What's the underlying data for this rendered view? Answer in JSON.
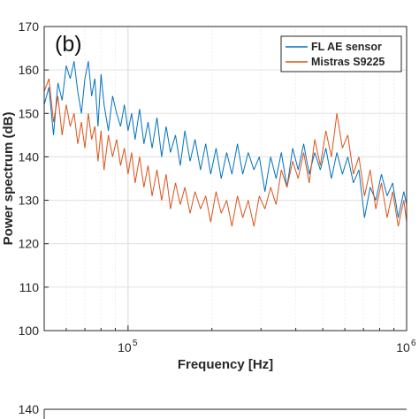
{
  "chart_data": [
    {
      "type": "line",
      "panel_label": "(b)",
      "xlabel": "Frequency [Hz]",
      "ylabel": "Power spectrum (dB)",
      "xscale": "log",
      "xlim": [
        50000,
        1000000
      ],
      "ylim": [
        100,
        170
      ],
      "xticks": [
        {
          "value": 100000,
          "label": "10",
          "exp": "5"
        },
        {
          "value": 1000000,
          "label": "10",
          "exp": "6"
        }
      ],
      "yticks": [
        100,
        110,
        120,
        130,
        140,
        150,
        160,
        170
      ],
      "grid": true,
      "legend_position": "top-right",
      "series": [
        {
          "name": "FL AE sensor",
          "color": "#0072BD",
          "points": [
            [
              50000,
              152
            ],
            [
              52000,
              156
            ],
            [
              54000,
              145
            ],
            [
              56000,
              157
            ],
            [
              58000,
              153
            ],
            [
              60000,
              161
            ],
            [
              62000,
              158
            ],
            [
              64000,
              162
            ],
            [
              66000,
              155
            ],
            [
              68000,
              150
            ],
            [
              70000,
              158
            ],
            [
              72000,
              162
            ],
            [
              74000,
              154
            ],
            [
              76000,
              158
            ],
            [
              78000,
              147
            ],
            [
              80000,
              159
            ],
            [
              82000,
              152
            ],
            [
              85000,
              146
            ],
            [
              88000,
              154
            ],
            [
              91000,
              150
            ],
            [
              94000,
              147
            ],
            [
              97000,
              152
            ],
            [
              100000,
              146
            ],
            [
              103000,
              150
            ],
            [
              106000,
              144
            ],
            [
              110000,
              151
            ],
            [
              114000,
              143
            ],
            [
              118000,
              148
            ],
            [
              122000,
              142
            ],
            [
              127000,
              149
            ],
            [
              132000,
              140
            ],
            [
              137000,
              147
            ],
            [
              142000,
              141
            ],
            [
              148000,
              145
            ],
            [
              154000,
              138
            ],
            [
              160000,
              146
            ],
            [
              167000,
              139
            ],
            [
              174000,
              144
            ],
            [
              182000,
              137
            ],
            [
              190000,
              143
            ],
            [
              198000,
              136
            ],
            [
              207000,
              142
            ],
            [
              216000,
              135
            ],
            [
              226000,
              141
            ],
            [
              236000,
              136
            ],
            [
              247000,
              143
            ],
            [
              258000,
              136
            ],
            [
              270000,
              141
            ],
            [
              283000,
              137
            ],
            [
              296000,
              140
            ],
            [
              310000,
              132
            ],
            [
              325000,
              140
            ],
            [
              340000,
              135
            ],
            [
              355000,
              141
            ],
            [
              372000,
              133
            ],
            [
              390000,
              142
            ],
            [
              408000,
              137
            ],
            [
              427000,
              143
            ],
            [
              447000,
              136
            ],
            [
              468000,
              141
            ],
            [
              490000,
              137
            ],
            [
              513000,
              142
            ],
            [
              537000,
              135
            ],
            [
              562000,
              141
            ],
            [
              588000,
              136
            ],
            [
              615000,
              140
            ],
            [
              644000,
              134
            ],
            [
              674000,
              137
            ],
            [
              706000,
              126
            ],
            [
              740000,
              133
            ],
            [
              775000,
              130
            ],
            [
              812000,
              136
            ],
            [
              851000,
              131
            ],
            [
              891000,
              134
            ],
            [
              933000,
              126
            ],
            [
              977000,
              132
            ],
            [
              1000000,
              129
            ]
          ]
        },
        {
          "name": "Mistras S9225",
          "color": "#D95319",
          "points": [
            [
              50000,
              155
            ],
            [
              52000,
              158
            ],
            [
              54000,
              148
            ],
            [
              56000,
              154
            ],
            [
              58000,
              145
            ],
            [
              60000,
              152
            ],
            [
              62000,
              147
            ],
            [
              64000,
              150
            ],
            [
              66000,
              143
            ],
            [
              68000,
              148
            ],
            [
              70000,
              142
            ],
            [
              72000,
              150
            ],
            [
              74000,
              144
            ],
            [
              76000,
              147
            ],
            [
              78000,
              139
            ],
            [
              80000,
              146
            ],
            [
              82000,
              137
            ],
            [
              85000,
              145
            ],
            [
              88000,
              140
            ],
            [
              91000,
              144
            ],
            [
              94000,
              138
            ],
            [
              97000,
              142
            ],
            [
              100000,
              136
            ],
            [
              103000,
              141
            ],
            [
              106000,
              134
            ],
            [
              110000,
              140
            ],
            [
              114000,
              133
            ],
            [
              118000,
              138
            ],
            [
              122000,
              131
            ],
            [
              127000,
              137
            ],
            [
              132000,
              130
            ],
            [
              137000,
              136
            ],
            [
              142000,
              128
            ],
            [
              148000,
              134
            ],
            [
              154000,
              129
            ],
            [
              160000,
              133
            ],
            [
              167000,
              127
            ],
            [
              174000,
              132
            ],
            [
              182000,
              128
            ],
            [
              190000,
              131
            ],
            [
              198000,
              125
            ],
            [
              207000,
              132
            ],
            [
              216000,
              127
            ],
            [
              226000,
              130
            ],
            [
              236000,
              124
            ],
            [
              247000,
              131
            ],
            [
              258000,
              126
            ],
            [
              270000,
              130
            ],
            [
              283000,
              124
            ],
            [
              296000,
              131
            ],
            [
              310000,
              128
            ],
            [
              325000,
              133
            ],
            [
              340000,
              129
            ],
            [
              355000,
              137
            ],
            [
              372000,
              133
            ],
            [
              390000,
              139
            ],
            [
              408000,
              135
            ],
            [
              427000,
              141
            ],
            [
              447000,
              134
            ],
            [
              468000,
              144
            ],
            [
              490000,
              138
            ],
            [
              513000,
              146
            ],
            [
              537000,
              140
            ],
            [
              562000,
              150
            ],
            [
              588000,
              142
            ],
            [
              615000,
              145
            ],
            [
              644000,
              136
            ],
            [
              674000,
              140
            ],
            [
              706000,
              131
            ],
            [
              740000,
              137
            ],
            [
              775000,
              128
            ],
            [
              812000,
              134
            ],
            [
              851000,
              126
            ],
            [
              891000,
              132
            ],
            [
              933000,
              124
            ],
            [
              977000,
              130
            ],
            [
              1000000,
              125
            ]
          ]
        }
      ]
    },
    {
      "type": "line",
      "partial": true,
      "ytick_visible": "140"
    }
  ]
}
